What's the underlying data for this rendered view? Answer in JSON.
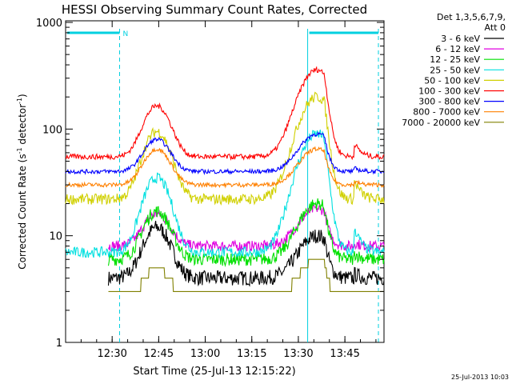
{
  "chart_data": {
    "type": "line",
    "title": "HESSI Observing Summary Count Rates, Corrected",
    "xlabel": "Start Time (25-Jul-13 12:15:22)",
    "ylabel_main": "Corrected Count Rate (s",
    "ylabel_sup1": "-1",
    "ylabel_mid": " detector",
    "ylabel_sup2": "-1",
    "ylabel_end": ")",
    "yscale": "log",
    "ylim": [
      1,
      1000
    ],
    "xlim_minutes": [
      12.25,
      13.96
    ],
    "x_ticks": [
      "12:30",
      "12:45",
      "13:00",
      "13:15",
      "13:30",
      "13:45"
    ],
    "y_tick_labels": [
      "1",
      "10",
      "100",
      "1000"
    ],
    "legend_header_1": "Det 1,3,5,6,7,9,",
    "legend_header_2": "Att 0",
    "legend_placement": "top-right, outside plot",
    "timestamp": "25-Jul-2013 10:03",
    "night_label": "N",
    "series": [
      {
        "name": "3 - 6 keV",
        "color": "#000000",
        "base": 4,
        "peak1": 12,
        "peak2": 10,
        "noise": 0.07,
        "gap_end": 12.48
      },
      {
        "name": "6 - 12 keV",
        "color": "#e000e0",
        "base": 8,
        "peak1": 16,
        "peak2": 18,
        "noise": 0.05,
        "gap_end": 12.48
      },
      {
        "name": "12 - 25 keV",
        "color": "#00e000",
        "base": 6,
        "peak1": 17,
        "peak2": 20,
        "noise": 0.06,
        "gap_end": 12.48
      },
      {
        "name": "25 - 50 keV",
        "color": "#00e0e0",
        "base": 7,
        "peak1": 35,
        "peak2": 90,
        "noise": 0.05,
        "gap_end": 12.25
      },
      {
        "name": "50 - 100 keV",
        "color": "#d0d000",
        "base": 22,
        "peak1": 95,
        "peak2": 200,
        "noise": 0.05,
        "gap_end": 12.25
      },
      {
        "name": "100 - 300 keV",
        "color": "#ff0000",
        "base": 55,
        "peak1": 165,
        "peak2": 360,
        "noise": 0.025,
        "gap_end": 12.25
      },
      {
        "name": "300 - 800 keV",
        "color": "#0000ff",
        "base": 40,
        "peak1": 80,
        "peak2": 90,
        "noise": 0.02,
        "gap_end": 12.25
      },
      {
        "name": "800 - 7000 keV",
        "color": "#ff8000",
        "base": 30,
        "peak1": 65,
        "peak2": 65,
        "noise": 0.02,
        "gap_end": 12.25
      },
      {
        "name": "7000 - 20000 keV",
        "color": "#808000",
        "base": 2.5,
        "peak1": 5,
        "peak2": 6,
        "noise": 0.0,
        "gap_end": 12.48
      }
    ],
    "night_intervals": [
      [
        12.25,
        12.54
      ],
      [
        13.55,
        13.93
      ]
    ],
    "night_color": "#00d0e0"
  }
}
